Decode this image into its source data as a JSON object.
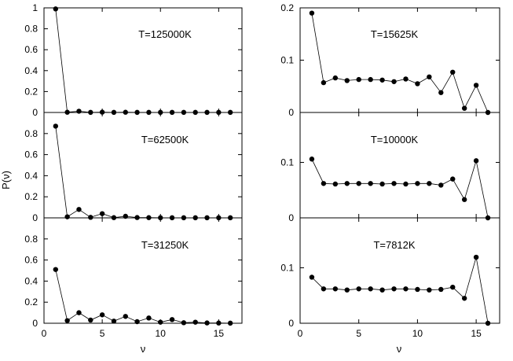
{
  "chart_data": [
    {
      "type": "line",
      "title": "T=125000K",
      "x": [
        1,
        2,
        3,
        4,
        5,
        6,
        7,
        8,
        9,
        10,
        11,
        12,
        13,
        14,
        15,
        16
      ],
      "y": [
        0.99,
        0.002,
        0.012,
        0.001,
        0.003,
        0.001,
        0.002,
        0.001,
        0.001,
        0.001,
        0.001,
        0.001,
        0.001,
        0.001,
        0.001,
        0.001
      ],
      "xlim": [
        0,
        17
      ],
      "ylim": [
        0,
        1
      ],
      "yticks": [
        "0",
        "0.2",
        "0.4",
        "0.6",
        "0.8",
        "1"
      ]
    },
    {
      "type": "line",
      "title": "T=62500K",
      "x": [
        1,
        2,
        3,
        4,
        5,
        6,
        7,
        8,
        9,
        10,
        11,
        12,
        13,
        14,
        15,
        16
      ],
      "y": [
        0.87,
        0.01,
        0.08,
        0.005,
        0.04,
        0.002,
        0.015,
        0.003,
        0.002,
        0.001,
        0.001,
        0.001,
        0.001,
        0.001,
        0.001,
        0.001
      ],
      "xlim": [
        0,
        17
      ],
      "ylim": [
        0,
        1
      ],
      "yticks": [
        "0",
        "0.2",
        "0.4",
        "0.6",
        "0.8"
      ]
    },
    {
      "type": "line",
      "title": "T=31250K",
      "x": [
        1,
        2,
        3,
        4,
        5,
        6,
        7,
        8,
        9,
        10,
        11,
        12,
        13,
        14,
        15,
        16
      ],
      "y": [
        0.51,
        0.025,
        0.1,
        0.03,
        0.08,
        0.02,
        0.065,
        0.015,
        0.05,
        0.01,
        0.035,
        0.005,
        0.01,
        0.003,
        0.002,
        0.001
      ],
      "xlim": [
        0,
        17
      ],
      "ylim": [
        0,
        1
      ],
      "yticks": [
        "0",
        "0.2",
        "0.4",
        "0.6",
        "0.8"
      ],
      "xticks": [
        "0",
        "5",
        "10",
        "15"
      ]
    },
    {
      "type": "line",
      "title": "T=15625K",
      "x": [
        1,
        2,
        3,
        4,
        5,
        6,
        7,
        8,
        9,
        10,
        11,
        12,
        13,
        14,
        15,
        16
      ],
      "y": [
        0.19,
        0.057,
        0.066,
        0.061,
        0.063,
        0.063,
        0.062,
        0.059,
        0.064,
        0.055,
        0.068,
        0.038,
        0.077,
        0.008,
        0.052,
        0.0
      ],
      "xlim": [
        0,
        17
      ],
      "ylim": [
        0,
        0.2
      ],
      "yticks": [
        "0",
        "0.1",
        "0.2"
      ]
    },
    {
      "type": "line",
      "title": "T=10000K",
      "x": [
        1,
        2,
        3,
        4,
        5,
        6,
        7,
        8,
        9,
        10,
        11,
        12,
        13,
        14,
        15,
        16
      ],
      "y": [
        0.106,
        0.062,
        0.061,
        0.062,
        0.062,
        0.062,
        0.061,
        0.062,
        0.061,
        0.062,
        0.062,
        0.059,
        0.07,
        0.033,
        0.103,
        0.0
      ],
      "xlim": [
        0,
        17
      ],
      "ylim": [
        0,
        0.19
      ],
      "yticks": [
        "0",
        "0.1"
      ]
    },
    {
      "type": "line",
      "title": "T=7812K",
      "x": [
        1,
        2,
        3,
        4,
        5,
        6,
        7,
        8,
        9,
        10,
        11,
        12,
        13,
        14,
        15,
        16
      ],
      "y": [
        0.083,
        0.062,
        0.062,
        0.06,
        0.062,
        0.062,
        0.06,
        0.062,
        0.062,
        0.061,
        0.06,
        0.061,
        0.065,
        0.045,
        0.119,
        0.0
      ],
      "xlim": [
        0,
        17
      ],
      "ylim": [
        0,
        0.19
      ],
      "yticks": [
        "0",
        "0.1"
      ],
      "xticks": [
        "0",
        "5",
        "10",
        "15"
      ]
    }
  ],
  "ylabel": "P(ν)",
  "xlabel_left": "ν",
  "xlabel_right": "ν"
}
